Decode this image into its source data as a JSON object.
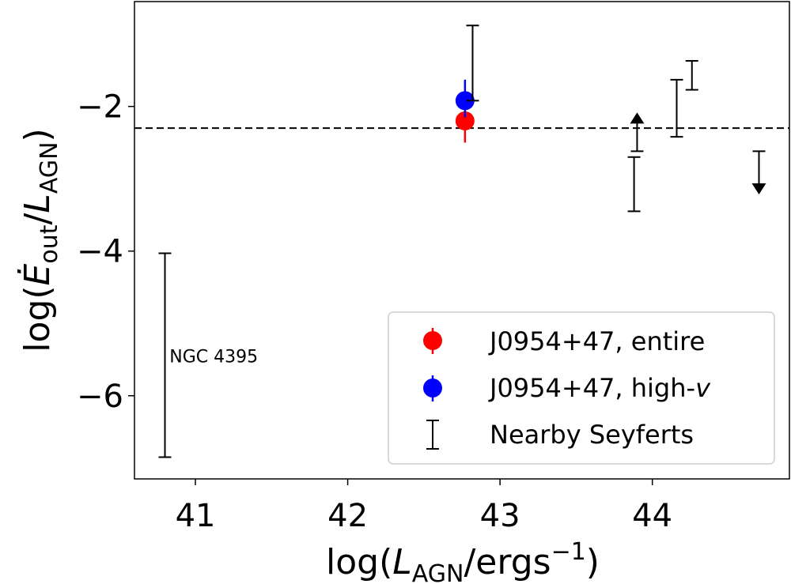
{
  "chart_data": {
    "type": "scatter",
    "xlabel": "log(L_AGN/ergs^-1)",
    "ylabel": "log(Ė_out/L_AGN)",
    "xlim": [
      40.6,
      44.9
    ],
    "ylim": [
      -7.15,
      -0.55
    ],
    "x_ticks": [
      41,
      42,
      43,
      44
    ],
    "y_ticks": [
      -2,
      -4,
      -6
    ],
    "x_tick_labels": [
      "41",
      "42",
      "43",
      "44"
    ],
    "y_tick_labels": [
      "−2",
      "−4",
      "−6"
    ],
    "grid": false,
    "legend_position": "bottom-right",
    "reference_line": {
      "y": -2.3,
      "style": "dashed",
      "color": "#000000"
    },
    "series": [
      {
        "name": "J0954+47, entire",
        "color": "#ff0000",
        "marker": "circle",
        "points": [
          {
            "x": 42.77,
            "y": -2.2,
            "ylow": -2.5,
            "yhigh": -1.92
          }
        ]
      },
      {
        "name": "J0954+47, high-v",
        "color": "#0000ff",
        "marker": "circle",
        "points": [
          {
            "x": 42.77,
            "y": -1.92,
            "ylow": -2.15,
            "yhigh": -1.63
          }
        ]
      },
      {
        "name": "Nearby Seyferts",
        "color": "#000000",
        "marker": "errorbar",
        "points": [
          {
            "x": 40.8,
            "ylow": -6.85,
            "yhigh": -4.03
          },
          {
            "x": 42.82,
            "ylow": -1.92,
            "yhigh": -0.88
          },
          {
            "x": 43.88,
            "ylow": -3.45,
            "yhigh": -2.7
          },
          {
            "x": 43.9,
            "ylow": -2.62,
            "yhigh": -2.15,
            "limit": "lower"
          },
          {
            "x": 44.16,
            "ylow": -2.42,
            "yhigh": -1.63
          },
          {
            "x": 44.26,
            "ylow": -1.77,
            "yhigh": -1.37
          },
          {
            "x": 44.7,
            "ylow": -3.15,
            "yhigh": -2.62,
            "limit": "upper"
          }
        ]
      }
    ],
    "annotations": [
      {
        "text": "NGC 4395",
        "x": 40.83,
        "y": -5.45
      }
    ]
  }
}
